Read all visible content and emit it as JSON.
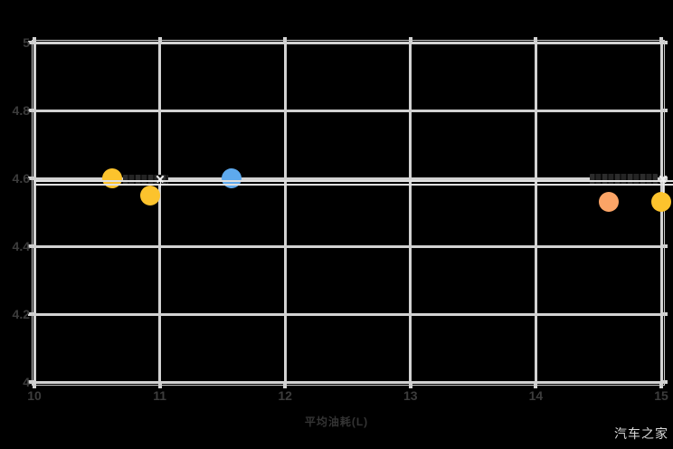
{
  "watermark": {
    "text": "汽车之家"
  },
  "chart_data": {
    "type": "scatter",
    "title": "",
    "xlabel": "平均油耗(L)",
    "ylabel": "",
    "xlim": [
      10,
      15
    ],
    "ylim": [
      4,
      5
    ],
    "x_ticks": [
      "10",
      "11",
      "12",
      "13",
      "14",
      "15"
    ],
    "y_ticks": [
      "5",
      "4.8",
      "4.6",
      "4.4",
      "4.2",
      "4"
    ],
    "y_tick_values": [
      5,
      4.8,
      4.6,
      4.4,
      4.2,
      4
    ],
    "x_tick_values": [
      10,
      11,
      12,
      13,
      14,
      15
    ],
    "grid": true,
    "legend": false,
    "point_labels": "two dark low-contrast callout labels rendered near the point clusters (illegible against black background)",
    "colors": {
      "background": "#000000",
      "grid": "#d2d2d2",
      "tick_labels": "#3c3c3c",
      "reference_line": "#e0e0e0",
      "watermark": "#d9d9d9"
    },
    "points": [
      {
        "x": 10.62,
        "y": 4.6,
        "color": "#fcc32d"
      },
      {
        "x": 10.92,
        "y": 4.55,
        "color": "#fcc32d"
      },
      {
        "x": 11.57,
        "y": 4.6,
        "color": "#5ea9ed"
      },
      {
        "x": 14.58,
        "y": 4.53,
        "color": "#fba466"
      },
      {
        "x": 15.0,
        "y": 4.53,
        "color": "#fcc32d"
      }
    ],
    "reference_lines": [
      {
        "y": 4.592
      },
      {
        "y": 4.581
      }
    ]
  }
}
